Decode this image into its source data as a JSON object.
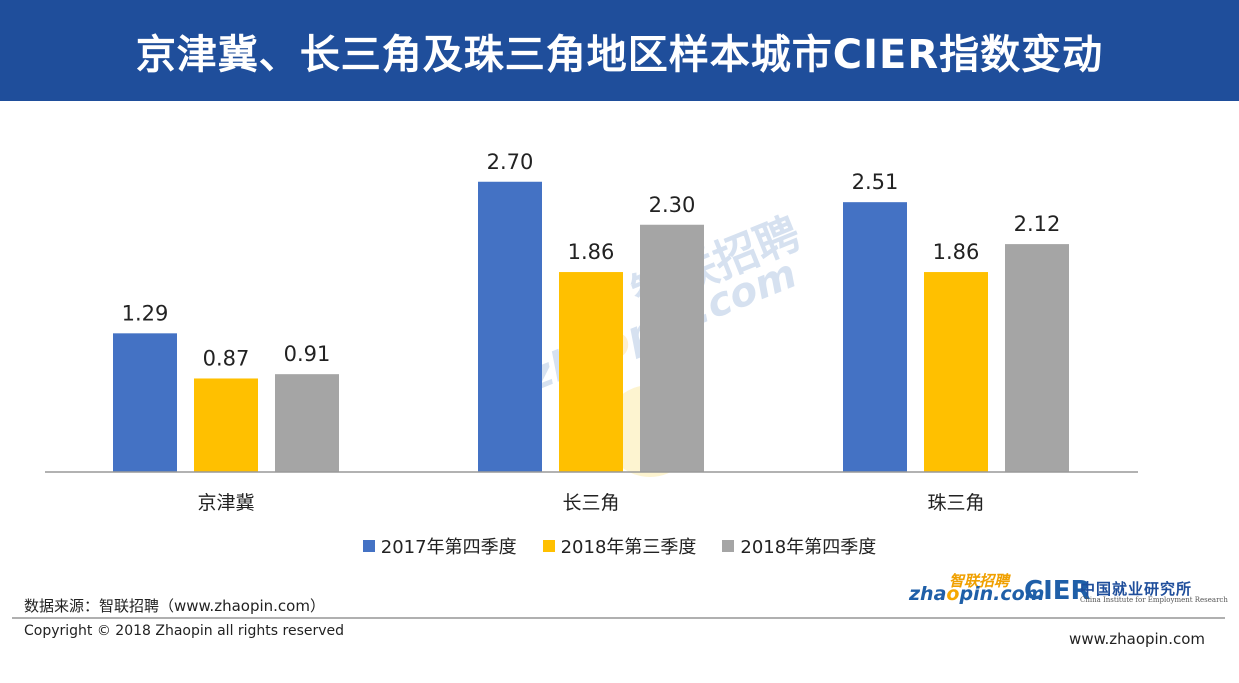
{
  "header": {
    "title": "京津冀、长三角及珠三角地区样本城市CIER指数变动"
  },
  "chart_data": {
    "type": "bar",
    "categories": [
      "京津冀",
      "长三角",
      "珠三角"
    ],
    "series": [
      {
        "name": "2017年第四季度",
        "color": "#4472c4",
        "values": [
          1.29,
          2.7,
          2.51
        ]
      },
      {
        "name": "2018年第三季度",
        "color": "#ffc000",
        "values": [
          0.87,
          1.86,
          1.86
        ]
      },
      {
        "name": "2018年第四季度",
        "color": "#a5a5a5",
        "values": [
          0.91,
          2.3,
          2.12
        ]
      }
    ],
    "value_labels": [
      [
        "1.29",
        "2.70",
        "2.51"
      ],
      [
        "0.87",
        "1.86",
        "1.86"
      ],
      [
        "0.91",
        "2.30",
        "2.12"
      ]
    ],
    "ylim": [
      0,
      3.2
    ],
    "grid": false,
    "legend": "bottom"
  },
  "watermark": {
    "cn": "智联招聘",
    "en_pre": "zha",
    "en_post": "pin.com"
  },
  "footer": {
    "source": "数据来源：智联招聘（www.zhaopin.com）",
    "copyright": "Copyright © 2018 Zhaopin all rights reserved",
    "website": "www.zhaopin.com"
  },
  "logos": {
    "zhaopin_cn": "智联招聘",
    "zhaopin_en_pre": "zha",
    "zhaopin_en_post": "pin.com",
    "cier_mark": "CIER",
    "cier_cn": "中国就业研究所",
    "cier_en": "China Institute for Employment Research"
  }
}
